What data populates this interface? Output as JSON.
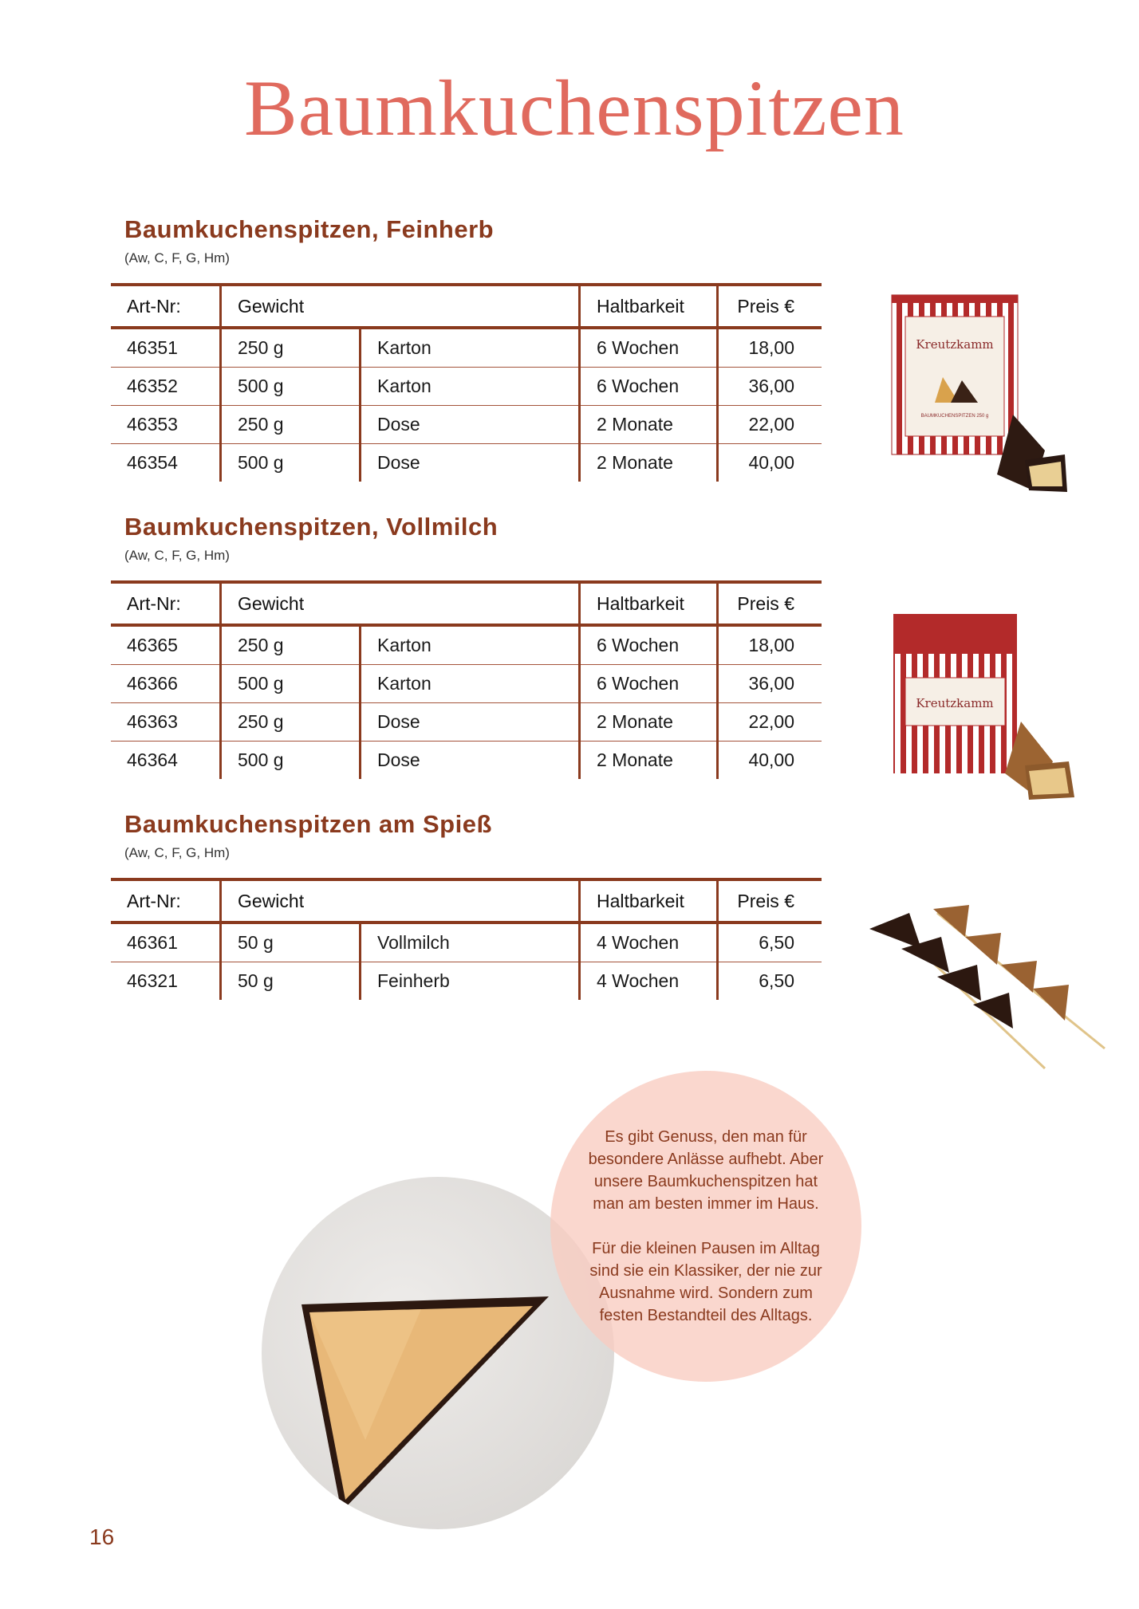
{
  "title": "Baumkuchenspitzen",
  "table_headers": {
    "art_nr": "Art-Nr:",
    "gewicht": "Gewicht",
    "haltbarkeit": "Haltbarkeit",
    "preis": "Preis €"
  },
  "sections": [
    {
      "heading": "Baumkuchenspitzen, Feinherb",
      "allergens": "(Aw, C, F, G, Hm)",
      "rows": [
        {
          "art_nr": "46351",
          "weight": "250 g",
          "pack": "Karton",
          "shelf_life": "6 Wochen",
          "price": "18,00"
        },
        {
          "art_nr": "46352",
          "weight": "500 g",
          "pack": "Karton",
          "shelf_life": "6 Wochen",
          "price": "36,00"
        },
        {
          "art_nr": "46353",
          "weight": "250 g",
          "pack": "Dose",
          "shelf_life": "2 Monate",
          "price": "22,00"
        },
        {
          "art_nr": "46354",
          "weight": "500 g",
          "pack": "Dose",
          "shelf_life": "2 Monate",
          "price": "40,00"
        }
      ]
    },
    {
      "heading": "Baumkuchenspitzen, Vollmilch",
      "allergens": "(Aw, C, F, G, Hm)",
      "rows": [
        {
          "art_nr": "46365",
          "weight": "250 g",
          "pack": "Karton",
          "shelf_life": "6 Wochen",
          "price": "18,00"
        },
        {
          "art_nr": "46366",
          "weight": "500 g",
          "pack": "Karton",
          "shelf_life": "6 Wochen",
          "price": "36,00"
        },
        {
          "art_nr": "46363",
          "weight": "250 g",
          "pack": "Dose",
          "shelf_life": "2 Monate",
          "price": "22,00"
        },
        {
          "art_nr": "46364",
          "weight": "500 g",
          "pack": "Dose",
          "shelf_life": "2 Monate",
          "price": "40,00"
        }
      ]
    },
    {
      "heading": "Baumkuchenspitzen am Spieß",
      "allergens": "(Aw, C, F, G, Hm)",
      "rows": [
        {
          "art_nr": "46361",
          "weight": "50 g",
          "pack": "Vollmilch",
          "shelf_life": "4 Wochen",
          "price": "6,50"
        },
        {
          "art_nr": "46321",
          "weight": "50 g",
          "pack": "Feinherb",
          "shelf_life": "4 Wochen",
          "price": "6,50"
        }
      ]
    }
  ],
  "product_logo_text": "Kreutzkamm",
  "product_box_label": "BAUMKUCHENSPITZEN 250 g",
  "quote": {
    "p1": "Es gibt Genuss, den man für besondere Anlässe aufhebt. Aber unsere Baumkuchenspitzen hat man am besten immer im Haus.",
    "p2": "Für die kleinen Pausen im Alltag sind sie ein Klassiker, der nie zur Ausnahme wird. Sondern zum festen Bestandteil des Alltags."
  },
  "page_number": "16",
  "colors": {
    "title": "#e06a5e",
    "accent": "#8a3a1e",
    "quote_bg": "#f8ccc0"
  }
}
